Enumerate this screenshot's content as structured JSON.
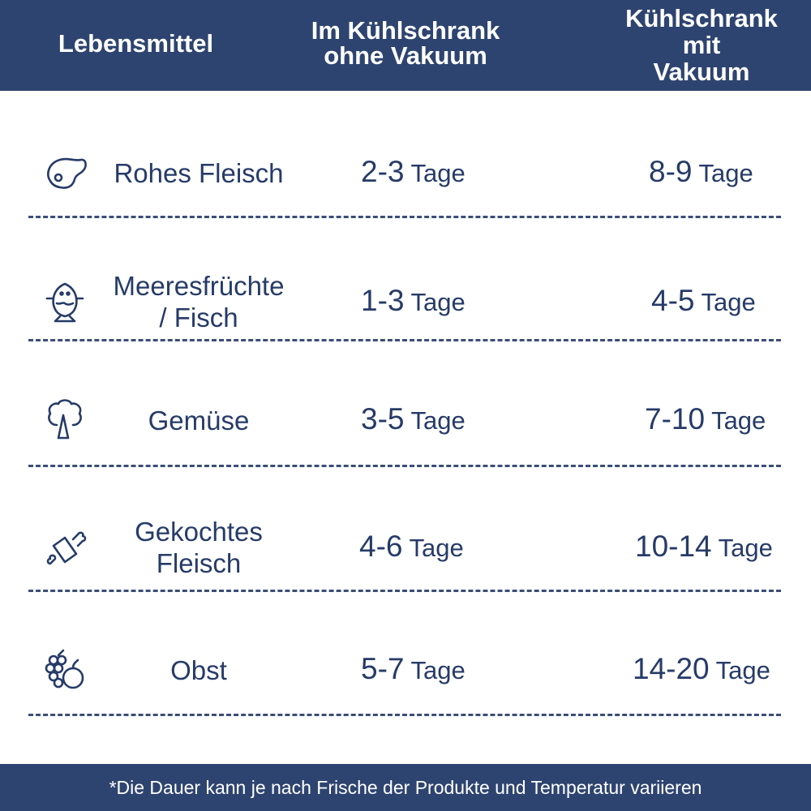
{
  "colors": {
    "header_bg": "#2e4470",
    "text": "#263b68"
  },
  "header": {
    "col1": "Lebensmittel",
    "col2_line1": "Im Kühlschrank",
    "col2_line2": "ohne Vakuum",
    "col3_line1": "Kühlschrank",
    "col3_line2": "mit",
    "col3_line3": "Vakuum"
  },
  "rows": [
    {
      "icon": "steak-icon",
      "food_line1": "Rohes Fleisch",
      "food_line2": "",
      "without_num": "2-3",
      "without_unit": "Tage",
      "with_num": "8-9",
      "with_unit": "Tage"
    },
    {
      "icon": "fish-icon",
      "food_line1": "Meeresfrüchte",
      "food_line2": "/ Fisch",
      "without_num": "1-3",
      "without_unit": "Tage",
      "with_num": "4-5",
      "with_unit": "Tage"
    },
    {
      "icon": "broccoli-icon",
      "food_line1": "Gemüse",
      "food_line2": "",
      "without_num": "3-5",
      "without_unit": "Tage",
      "with_num": "7-10",
      "with_unit": "Tage"
    },
    {
      "icon": "ham-icon",
      "food_line1": "Gekochtes",
      "food_line2": "Fleisch",
      "without_num": "4-6",
      "without_unit": "Tage",
      "with_num": "10-14",
      "with_unit": "Tage"
    },
    {
      "icon": "fruit-icon",
      "food_line1": "Obst",
      "food_line2": "",
      "without_num": "5-7",
      "without_unit": "Tage",
      "with_num": "14-20",
      "with_unit": "Tage"
    }
  ],
  "footer": {
    "note": "*Die Dauer kann je nach Frische der Produkte und Temperatur variieren"
  }
}
